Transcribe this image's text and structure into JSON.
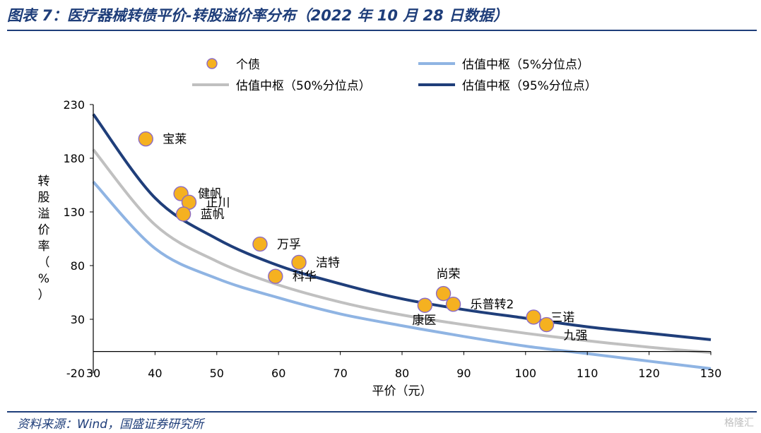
{
  "figure": {
    "title": "图表 7：医疗器械转债平价-转股溢价率分布（2022 年 10 月 28 日数据）",
    "source": "资料来源：Wind，国盛证券研究所",
    "watermark": "格隆汇"
  },
  "colors": {
    "title": "#1f3e7a",
    "point_fill": "#f5b120",
    "point_edge": "#8c6bc4",
    "curve_5": "#8fb4e3",
    "curve_50": "#c0c0c0",
    "curve_95": "#1f3e7a",
    "axis": "#000000"
  },
  "chart_data": {
    "type": "scatter",
    "title": "",
    "xlabel": "平价（元）",
    "ylabel": "转股溢价率（%）",
    "xlim": [
      30,
      130
    ],
    "ylim": [
      -20,
      230
    ],
    "xticks": [
      30,
      40,
      50,
      60,
      70,
      80,
      90,
      100,
      110,
      120,
      130
    ],
    "yticks": [
      -20,
      30,
      80,
      130,
      180,
      230
    ],
    "legend": [
      {
        "label": "个债",
        "kind": "point"
      },
      {
        "label": "估值中枢（5%分位点）",
        "kind": "line",
        "color_key": "curve_5"
      },
      {
        "label": "估值中枢（50%分位点）",
        "kind": "line",
        "color_key": "curve_50"
      },
      {
        "label": "估值中枢（95%分位点）",
        "kind": "line",
        "color_key": "curve_95"
      }
    ],
    "points": [
      {
        "name": "宝莱",
        "x": 38.5,
        "y": 198,
        "label_pos": "right"
      },
      {
        "name": "健帆",
        "x": 44.2,
        "y": 147,
        "label_pos": "right"
      },
      {
        "name": "正川",
        "x": 45.5,
        "y": 139,
        "label_pos": "right"
      },
      {
        "name": "蓝帆",
        "x": 44.6,
        "y": 128,
        "label_pos": "right"
      },
      {
        "name": "万孚",
        "x": 57.0,
        "y": 100,
        "label_pos": "right"
      },
      {
        "name": "洁特",
        "x": 63.3,
        "y": 83,
        "label_pos": "right"
      },
      {
        "name": "科华",
        "x": 59.5,
        "y": 70,
        "label_pos": "right"
      },
      {
        "name": "尚荣",
        "x": 86.7,
        "y": 54,
        "label_pos": "above"
      },
      {
        "name": "乐普转2",
        "x": 88.3,
        "y": 44,
        "label_pos": "right"
      },
      {
        "name": "康医",
        "x": 83.7,
        "y": 43,
        "label_pos": "below-left"
      },
      {
        "name": "三诺",
        "x": 101.3,
        "y": 32,
        "label_pos": "right"
      },
      {
        "name": "九强",
        "x": 103.4,
        "y": 25,
        "label_pos": "below-right"
      }
    ],
    "series": [
      {
        "name": "估值中枢（5%分位点）",
        "color_key": "curve_5",
        "x": [
          30,
          40,
          50,
          60,
          70,
          80,
          90,
          100,
          110,
          120,
          130
        ],
        "values": [
          158,
          96,
          68,
          50,
          35,
          24,
          14,
          5,
          -2,
          -9,
          -16
        ]
      },
      {
        "name": "估值中枢（50%分位点）",
        "color_key": "curve_50",
        "x": [
          30,
          40,
          50,
          60,
          70,
          80,
          90,
          100,
          110,
          120,
          130
        ],
        "values": [
          188,
          118,
          84,
          62,
          46,
          34,
          25,
          17,
          10,
          4,
          -1
        ]
      },
      {
        "name": "估值中枢（95%分位点）",
        "color_key": "curve_95",
        "x": [
          30,
          40,
          50,
          60,
          70,
          80,
          90,
          100,
          110,
          120,
          130
        ],
        "values": [
          221,
          143,
          105,
          80,
          63,
          49,
          39,
          31,
          23,
          17,
          11
        ]
      }
    ]
  }
}
